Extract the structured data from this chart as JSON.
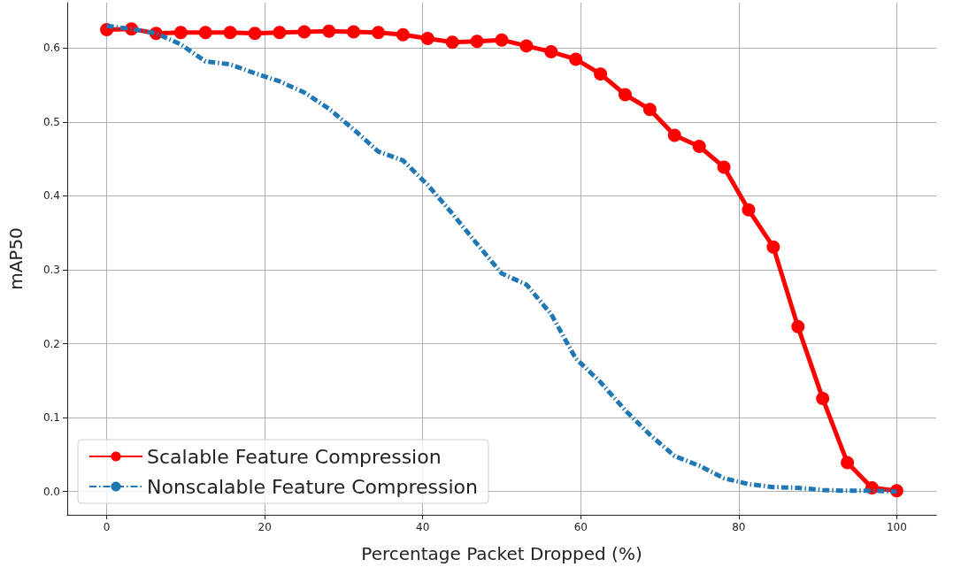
{
  "chart_data": {
    "type": "line",
    "xlabel": "Percentage Packet Dropped (%)",
    "ylabel": "mAP50",
    "x": [
      0,
      3.125,
      6.25,
      9.375,
      12.5,
      15.625,
      18.75,
      21.875,
      25,
      28.125,
      31.25,
      34.375,
      37.5,
      40.625,
      43.75,
      46.875,
      50,
      53.125,
      56.25,
      59.375,
      62.5,
      65.625,
      68.75,
      71.875,
      75,
      78.125,
      81.25,
      84.375,
      87.5,
      90.625,
      93.75,
      96.875,
      100
    ],
    "series": [
      {
        "name": "Scalable Feature Compression",
        "color": "#ff0000",
        "marker": "circle",
        "line_style": "solid",
        "values": [
          0.625,
          0.626,
          0.62,
          0.621,
          0.621,
          0.621,
          0.62,
          0.621,
          0.622,
          0.623,
          0.622,
          0.621,
          0.618,
          0.613,
          0.608,
          0.609,
          0.611,
          0.603,
          0.595,
          0.585,
          0.565,
          0.537,
          0.517,
          0.482,
          0.467,
          0.439,
          0.381,
          0.331,
          0.223,
          0.126,
          0.039,
          0.005,
          0.001
        ]
      },
      {
        "name": "Nonscalable Feature Compression",
        "color": "#1f77b4",
        "marker": "none",
        "line_style": "dashed",
        "values": [
          0.63,
          0.626,
          0.62,
          0.605,
          0.582,
          0.578,
          0.566,
          0.555,
          0.54,
          0.518,
          0.49,
          0.46,
          0.448,
          0.415,
          0.376,
          0.335,
          0.295,
          0.28,
          0.24,
          0.18,
          0.148,
          0.11,
          0.077,
          0.048,
          0.035,
          0.018,
          0.01,
          0.006,
          0.005,
          0.002,
          0.001,
          0.001,
          0.0
        ]
      }
    ],
    "xlim": [
      -5,
      105
    ],
    "xticks": [
      0,
      20,
      40,
      60,
      80,
      100
    ],
    "ylim": [
      -0.0315,
      0.6615
    ],
    "yticks": [
      {
        "value": 0,
        "label": "0.0"
      },
      {
        "value": 0.1,
        "label": "0.1"
      },
      {
        "value": 0.2,
        "label": "0.2"
      },
      {
        "value": 0.3,
        "label": "0.3"
      },
      {
        "value": 0.4,
        "label": "0.4"
      },
      {
        "value": 0.5,
        "label": "0.5"
      },
      {
        "value": 0.6,
        "label": "0.6"
      }
    ],
    "grid": true,
    "legend": "bottom left"
  }
}
